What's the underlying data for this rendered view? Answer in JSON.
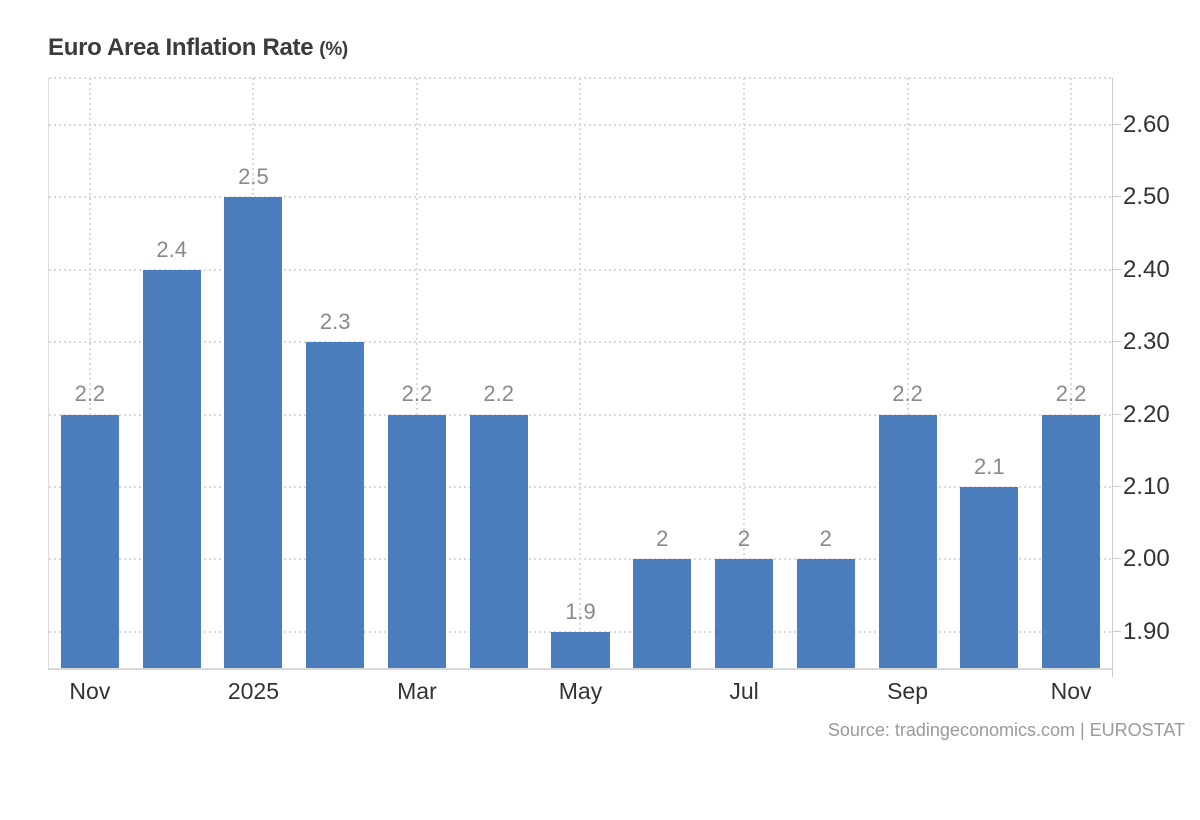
{
  "header": {
    "title": "Euro Area Inflation Rate",
    "unit": "(%)"
  },
  "footer": {
    "source": "Source: tradingeconomics.com | EUROSTAT"
  },
  "chart_data": {
    "type": "bar",
    "title": "Euro Area Inflation Rate (%)",
    "categories": [
      "Nov",
      "",
      "2025",
      "",
      "Mar",
      "",
      "May",
      "",
      "Jul",
      "",
      "Sep",
      "",
      "Nov"
    ],
    "values": [
      2.2,
      2.4,
      2.5,
      2.3,
      2.2,
      2.2,
      1.9,
      2,
      2,
      2,
      2.2,
      2.1,
      2.2
    ],
    "data_labels": [
      "2.2",
      "2.4",
      "2.5",
      "2.3",
      "2.2",
      "2.2",
      "1.9",
      "2",
      "2",
      "2",
      "2.2",
      "2.1",
      "2.2"
    ],
    "y_ticks": [
      "2.60",
      "2.50",
      "2.40",
      "2.30",
      "2.20",
      "2.10",
      "2.00",
      "1.90"
    ],
    "ylim": [
      1.85,
      2.665
    ],
    "xlabel": "",
    "ylabel": "",
    "y_axis_side": "right",
    "legend": "none",
    "grid": "dotted",
    "colors": {
      "bar": "#4b7dbd",
      "grid": "#d9d9d9",
      "axis": "#cccccc",
      "data_label": "#8a8a8a",
      "axis_label": "#333333",
      "title": "#3b3b3b",
      "source": "#9a9a9a"
    },
    "source": "Source: tradingeconomics.com | EUROSTAT"
  }
}
